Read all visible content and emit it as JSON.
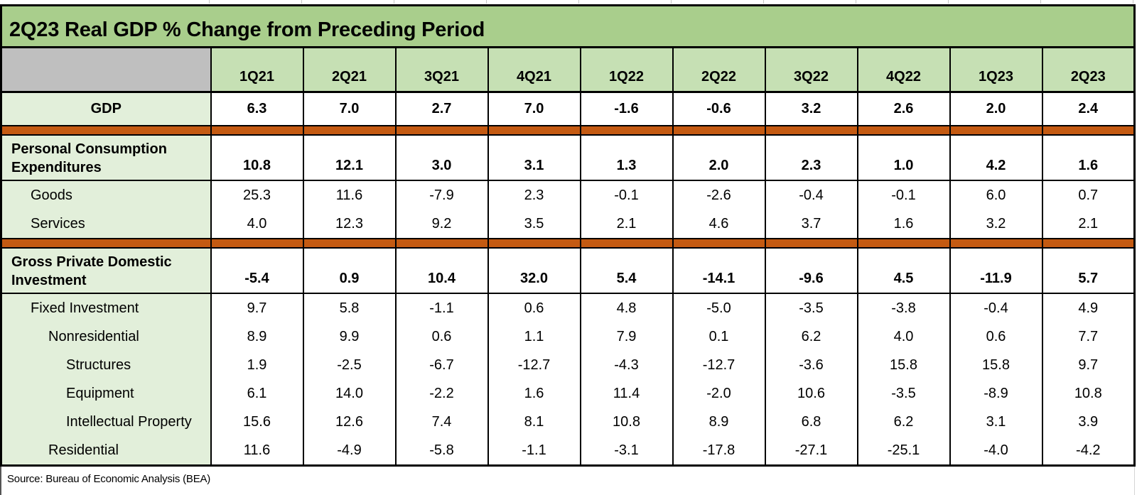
{
  "title": "2Q23 Real GDP % Change from Preceding Period",
  "source": {
    "text": "Source: Bureau of Economic Analysis (BEA)"
  },
  "columns": [
    "1Q21",
    "2Q21",
    "3Q21",
    "4Q21",
    "1Q22",
    "2Q22",
    "3Q22",
    "4Q22",
    "1Q23",
    "2Q23"
  ],
  "rows": [
    {
      "kind": "gdp-row",
      "label": "GDP",
      "indent": 0,
      "values": [
        "6.3",
        "7.0",
        "2.7",
        "7.0",
        "-1.6",
        "-0.6",
        "3.2",
        "2.6",
        "2.0",
        "2.4"
      ]
    },
    {
      "kind": "divider"
    },
    {
      "kind": "section",
      "label": "Personal Consumption Expenditures",
      "indent": 0,
      "values": [
        "10.8",
        "12.1",
        "3.0",
        "3.1",
        "1.3",
        "2.0",
        "2.3",
        "1.0",
        "4.2",
        "1.6"
      ]
    },
    {
      "kind": "sub",
      "label": "Goods",
      "indent": 1,
      "values": [
        "25.3",
        "11.6",
        "-7.9",
        "2.3",
        "-0.1",
        "-2.6",
        "-0.4",
        "-0.1",
        "6.0",
        "0.7"
      ]
    },
    {
      "kind": "sub",
      "label": "Services",
      "indent": 1,
      "section_end": true,
      "values": [
        "4.0",
        "12.3",
        "9.2",
        "3.5",
        "2.1",
        "4.6",
        "3.7",
        "1.6",
        "3.2",
        "2.1"
      ]
    },
    {
      "kind": "divider"
    },
    {
      "kind": "section",
      "label": "Gross Private Domestic Investment",
      "indent": 0,
      "values": [
        "-5.4",
        "0.9",
        "10.4",
        "32.0",
        "5.4",
        "-14.1",
        "-9.6",
        "4.5",
        "-11.9",
        "5.7"
      ]
    },
    {
      "kind": "sub",
      "label": "Fixed Investment",
      "indent": 1,
      "values": [
        "9.7",
        "5.8",
        "-1.1",
        "0.6",
        "4.8",
        "-5.0",
        "-3.5",
        "-3.8",
        "-0.4",
        "4.9"
      ]
    },
    {
      "kind": "sub",
      "label": "Nonresidential",
      "indent": 2,
      "values": [
        "8.9",
        "9.9",
        "0.6",
        "1.1",
        "7.9",
        "0.1",
        "6.2",
        "4.0",
        "0.6",
        "7.7"
      ]
    },
    {
      "kind": "sub",
      "label": "Structures",
      "indent": 3,
      "values": [
        "1.9",
        "-2.5",
        "-6.7",
        "-12.7",
        "-4.3",
        "-12.7",
        "-3.6",
        "15.8",
        "15.8",
        "9.7"
      ]
    },
    {
      "kind": "sub",
      "label": "Equipment",
      "indent": 3,
      "values": [
        "6.1",
        "14.0",
        "-2.2",
        "1.6",
        "11.4",
        "-2.0",
        "10.6",
        "-3.5",
        "-8.9",
        "10.8"
      ]
    },
    {
      "kind": "sub",
      "label": "Intellectual Property",
      "indent": 3,
      "values": [
        "15.6",
        "12.6",
        "7.4",
        "8.1",
        "10.8",
        "8.9",
        "6.8",
        "6.2",
        "3.1",
        "3.9"
      ]
    },
    {
      "kind": "sub",
      "label": "Residential",
      "indent": 2,
      "values": [
        "11.6",
        "-4.9",
        "-5.8",
        "-1.1",
        "-3.1",
        "-17.8",
        "-27.1",
        "-25.1",
        "-4.0",
        "-4.2"
      ]
    }
  ],
  "colors": {
    "title_bg": "#A9CE8C",
    "header_bg": "#C6E0B4",
    "label_bg": "#E2EFDA",
    "corner_bg": "#BFBFBF",
    "divider_orange": "#C45A12",
    "border": "#000000"
  },
  "chart_data": {
    "type": "table",
    "title": "2Q23 Real GDP % Change from Preceding Period",
    "categories": [
      "1Q21",
      "2Q21",
      "3Q21",
      "4Q21",
      "1Q22",
      "2Q22",
      "3Q22",
      "4Q22",
      "1Q23",
      "2Q23"
    ],
    "series": [
      {
        "name": "GDP",
        "values": [
          6.3,
          7.0,
          2.7,
          7.0,
          -1.6,
          -0.6,
          3.2,
          2.6,
          2.0,
          2.4
        ]
      },
      {
        "name": "Personal Consumption Expenditures",
        "values": [
          10.8,
          12.1,
          3.0,
          3.1,
          1.3,
          2.0,
          2.3,
          1.0,
          4.2,
          1.6
        ]
      },
      {
        "name": "Goods",
        "values": [
          25.3,
          11.6,
          -7.9,
          2.3,
          -0.1,
          -2.6,
          -0.4,
          -0.1,
          6.0,
          0.7
        ]
      },
      {
        "name": "Services",
        "values": [
          4.0,
          12.3,
          9.2,
          3.5,
          2.1,
          4.6,
          3.7,
          1.6,
          3.2,
          2.1
        ]
      },
      {
        "name": "Gross Private Domestic Investment",
        "values": [
          -5.4,
          0.9,
          10.4,
          32.0,
          5.4,
          -14.1,
          -9.6,
          4.5,
          -11.9,
          5.7
        ]
      },
      {
        "name": "Fixed Investment",
        "values": [
          9.7,
          5.8,
          -1.1,
          0.6,
          4.8,
          -5.0,
          -3.5,
          -3.8,
          -0.4,
          4.9
        ]
      },
      {
        "name": "Nonresidential",
        "values": [
          8.9,
          9.9,
          0.6,
          1.1,
          7.9,
          0.1,
          6.2,
          4.0,
          0.6,
          7.7
        ]
      },
      {
        "name": "Structures",
        "values": [
          1.9,
          -2.5,
          -6.7,
          -12.7,
          -4.3,
          -12.7,
          -3.6,
          15.8,
          15.8,
          9.7
        ]
      },
      {
        "name": "Equipment",
        "values": [
          6.1,
          14.0,
          -2.2,
          1.6,
          11.4,
          -2.0,
          10.6,
          -3.5,
          -8.9,
          10.8
        ]
      },
      {
        "name": "Intellectual Property",
        "values": [
          15.6,
          12.6,
          7.4,
          8.1,
          10.8,
          8.9,
          6.8,
          6.2,
          3.1,
          3.9
        ]
      },
      {
        "name": "Residential",
        "values": [
          11.6,
          -4.9,
          -5.8,
          -1.1,
          -3.1,
          -17.8,
          -27.1,
          -25.1,
          -4.0,
          -4.2
        ]
      }
    ],
    "footnote": "Source: Bureau of Economic Analysis (BEA)",
    "grid": true,
    "legend_position": "none"
  }
}
